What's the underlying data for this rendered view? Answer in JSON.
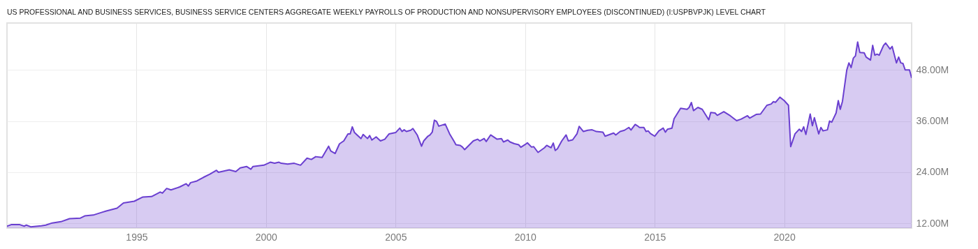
{
  "chart_data": {
    "type": "area",
    "title": "US PROFESSIONAL AND BUSINESS SERVICES, BUSINESS SERVICE CENTERS AGGREGATE WEEKLY PAYROLLS OF PRODUCTION AND NONSUPERVISORY EMPLOYEES (DISCONTINUED) (I:USPBVPJK) LEVEL CHART",
    "x": [
      "1990-01",
      "1990-03",
      "1990-07",
      "1990-09",
      "1990-10",
      "1990-12",
      "1991-05",
      "1991-07",
      "1991-10",
      "1992-02",
      "1992-06",
      "1992-11",
      "1993-01",
      "1993-05",
      "1993-09",
      "1993-11",
      "1994-04",
      "1994-07",
      "1994-12",
      "1995-04",
      "1995-08",
      "1995-12",
      "1996-01",
      "1996-03",
      "1996-05",
      "1996-09",
      "1996-12",
      "1997-01",
      "1997-02",
      "1997-05",
      "1997-08",
      "1997-11",
      "1998-02",
      "1998-03",
      "1998-08",
      "1998-11",
      "1999-01",
      "1999-04",
      "1999-06",
      "1999-07",
      "1999-12",
      "2000-03",
      "2000-05",
      "2000-07",
      "2000-08",
      "2000-11",
      "2001-02",
      "2001-05",
      "2001-08",
      "2001-10",
      "2001-12",
      "2002-03",
      "2002-06",
      "2002-07",
      "2002-09",
      "2002-11",
      "2003-01",
      "2003-03",
      "2003-04",
      "2003-05",
      "2003-06",
      "2003-09",
      "2003-10",
      "2003-12",
      "2004-01",
      "2004-02",
      "2004-04",
      "2004-06",
      "2004-08",
      "2004-10",
      "2005-01",
      "2005-03",
      "2005-04",
      "2005-05",
      "2005-06",
      "2005-08",
      "2005-09",
      "2005-11",
      "2006-01",
      "2006-02",
      "2006-04",
      "2006-05",
      "2006-06",
      "2006-07",
      "2006-08",
      "2006-09",
      "2006-12",
      "2007-02",
      "2007-04",
      "2007-05",
      "2007-07",
      "2007-08",
      "2007-09",
      "2008-01",
      "2008-03",
      "2008-04",
      "2008-06",
      "2008-07",
      "2008-09",
      "2008-12",
      "2009-02",
      "2009-03",
      "2009-05",
      "2009-06",
      "2009-08",
      "2009-10",
      "2009-11",
      "2010-01",
      "2010-02",
      "2010-04",
      "2010-05",
      "2010-07",
      "2010-10",
      "2010-11",
      "2011-01",
      "2011-02",
      "2011-03",
      "2011-04",
      "2011-06",
      "2011-08",
      "2011-09",
      "2011-11",
      "2012-01",
      "2012-02",
      "2012-04",
      "2012-06",
      "2012-08",
      "2012-10",
      "2013-01",
      "2013-02",
      "2013-06",
      "2013-07",
      "2013-09",
      "2013-11",
      "2014-01",
      "2014-02",
      "2014-04",
      "2014-05",
      "2014-06",
      "2014-08",
      "2014-09",
      "2014-10",
      "2014-11",
      "2015-01",
      "2015-03",
      "2015-05",
      "2015-06",
      "2015-07",
      "2015-09",
      "2015-10",
      "2016-01",
      "2016-04",
      "2016-05",
      "2016-06",
      "2016-07",
      "2016-09",
      "2016-11",
      "2017-02",
      "2017-03",
      "2017-05",
      "2017-06",
      "2017-09",
      "2017-12",
      "2018-03",
      "2018-05",
      "2018-08",
      "2018-09",
      "2018-12",
      "2019-02",
      "2019-05",
      "2019-07",
      "2019-08",
      "2019-09",
      "2019-11",
      "2020-01",
      "2020-03",
      "2020-04",
      "2020-06",
      "2020-08",
      "2020-09",
      "2020-10",
      "2020-11",
      "2021-01",
      "2021-02",
      "2021-03",
      "2021-05",
      "2021-06",
      "2021-07",
      "2021-09",
      "2021-10",
      "2021-11",
      "2022-01",
      "2022-02",
      "2022-03",
      "2022-04",
      "2022-06",
      "2022-07",
      "2022-08",
      "2022-09",
      "2022-10",
      "2022-11",
      "2022-12",
      "2023-02",
      "2023-03",
      "2023-05",
      "2023-06",
      "2023-07",
      "2023-08",
      "2023-09",
      "2023-11",
      "2023-12",
      "2024-02",
      "2024-03",
      "2024-05",
      "2024-06",
      "2024-07",
      "2024-08",
      "2024-09",
      "2024-11",
      "2024-12"
    ],
    "series": [
      {
        "color": "#6a3fd0",
        "values": [
          11.35,
          11.7,
          11.7,
          11.35,
          11.6,
          11.2,
          11.45,
          11.6,
          12.1,
          12.4,
          13.1,
          13.25,
          13.75,
          13.95,
          14.6,
          14.9,
          15.55,
          16.8,
          17.2,
          18.2,
          18.3,
          19.35,
          19.1,
          20.2,
          19.85,
          20.55,
          21.3,
          20.75,
          21.55,
          21.95,
          22.8,
          23.55,
          24.45,
          24.0,
          24.55,
          24.15,
          25.0,
          25.35,
          24.7,
          25.35,
          25.65,
          26.35,
          26.1,
          26.35,
          26.1,
          25.9,
          26.1,
          25.65,
          27.3,
          27.0,
          27.65,
          27.45,
          30.1,
          29.0,
          28.4,
          30.65,
          31.35,
          33.0,
          33.0,
          34.65,
          33.3,
          31.9,
          32.85,
          31.9,
          32.6,
          31.55,
          32.3,
          31.35,
          31.75,
          33.0,
          33.3,
          34.35,
          33.55,
          33.95,
          33.55,
          33.85,
          34.25,
          32.75,
          30.1,
          31.35,
          32.45,
          32.75,
          33.4,
          36.2,
          35.9,
          34.8,
          35.3,
          33.0,
          31.35,
          30.45,
          30.3,
          29.9,
          29.3,
          31.35,
          31.75,
          31.35,
          31.9,
          31.2,
          32.75,
          31.75,
          31.9,
          31.1,
          31.55,
          31.1,
          30.7,
          30.45,
          29.85,
          30.5,
          30.9,
          29.9,
          30.0,
          28.65,
          29.75,
          30.3,
          29.75,
          30.85,
          29.1,
          29.5,
          31.35,
          32.75,
          31.35,
          31.6,
          33.0,
          34.75,
          33.55,
          33.85,
          33.95,
          33.55,
          33.4,
          32.45,
          33.2,
          32.75,
          33.55,
          33.85,
          34.5,
          33.9,
          35.2,
          34.9,
          34.5,
          34.5,
          33.55,
          33.7,
          33.1,
          32.45,
          33.7,
          34.35,
          33.4,
          34.1,
          34.35,
          36.55,
          39.0,
          38.75,
          39.2,
          40.35,
          38.45,
          39.2,
          38.75,
          36.3,
          38.0,
          37.9,
          37.35,
          38.2,
          37.25,
          36.1,
          36.45,
          37.25,
          36.7,
          37.55,
          37.65,
          39.7,
          40.0,
          40.55,
          40.4,
          41.6,
          40.8,
          39.7,
          30.0,
          33.0,
          34.1,
          33.55,
          34.65,
          32.85,
          37.65,
          34.9,
          36.8,
          33.0,
          34.5,
          33.7,
          33.95,
          36.0,
          35.75,
          37.9,
          40.8,
          38.75,
          40.65,
          48.0,
          49.65,
          48.55,
          50.75,
          51.3,
          54.55,
          52.1,
          52.0,
          51.0,
          50.3,
          53.75,
          51.45,
          51.7,
          51.45,
          53.75,
          54.3,
          52.9,
          53.5,
          49.65,
          51.0,
          49.65,
          49.5,
          48.0,
          48.0,
          46.1
        ]
      }
    ],
    "xlim": [
      "1990-01",
      "2024-12"
    ],
    "xticks": [
      {
        "value": "1995-01",
        "label": "1995"
      },
      {
        "value": "2000-01",
        "label": "2000"
      },
      {
        "value": "2005-01",
        "label": "2005"
      },
      {
        "value": "2010-01",
        "label": "2010"
      },
      {
        "value": "2015-01",
        "label": "2015"
      },
      {
        "value": "2020-01",
        "label": "2020"
      }
    ],
    "ylim": [
      10.9,
      59.0
    ],
    "yticks": [
      {
        "value": 12,
        "label": "12.00M"
      },
      {
        "value": 24,
        "label": "24.00M"
      },
      {
        "value": 36,
        "label": "36.00M"
      },
      {
        "value": 48,
        "label": "48.00M"
      }
    ],
    "grid": true
  }
}
